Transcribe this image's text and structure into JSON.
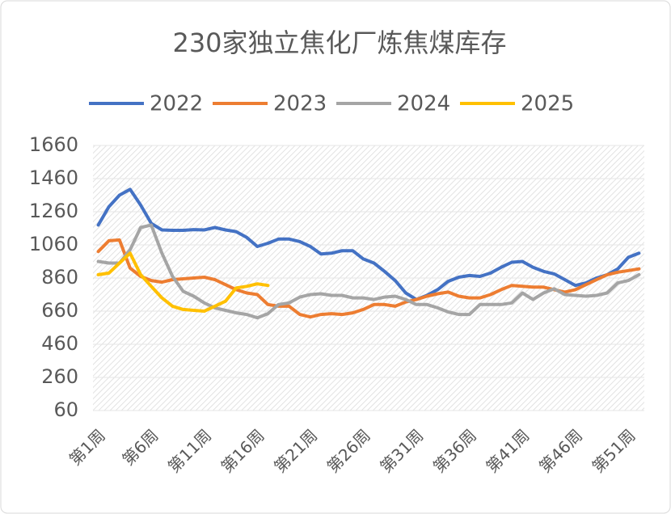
{
  "chart_data": {
    "type": "line",
    "title": "230家独立焦化厂炼焦煤库存",
    "categories": [
      "第1周",
      null,
      null,
      null,
      null,
      "第6周",
      null,
      null,
      null,
      null,
      "第11周",
      null,
      null,
      null,
      null,
      "第16周",
      null,
      null,
      null,
      null,
      "第21周",
      null,
      null,
      null,
      null,
      "第26周",
      null,
      null,
      null,
      null,
      "第31周",
      null,
      null,
      null,
      null,
      "第36周",
      null,
      null,
      null,
      null,
      "第41周",
      null,
      null,
      null,
      null,
      "第46周",
      null,
      null,
      null,
      null,
      "第51周",
      null
    ],
    "series": [
      {
        "name": "2022",
        "color": "#4472c4",
        "values": [
          1180,
          1290,
          1360,
          1395,
          1300,
          1190,
          1150,
          1148,
          1148,
          1152,
          1150,
          1165,
          1150,
          1140,
          1105,
          1050,
          1070,
          1095,
          1095,
          1080,
          1050,
          1005,
          1010,
          1025,
          1025,
          975,
          950,
          900,
          845,
          770,
          730,
          755,
          790,
          840,
          865,
          875,
          870,
          890,
          925,
          955,
          960,
          925,
          900,
          885,
          850,
          815,
          830,
          860,
          880,
          915,
          985,
          1010
        ]
      },
      {
        "name": "2023",
        "color": "#ed7d31",
        "values": [
          1020,
          1085,
          1090,
          920,
          870,
          845,
          835,
          850,
          855,
          860,
          865,
          850,
          820,
          790,
          770,
          760,
          700,
          690,
          690,
          640,
          625,
          640,
          645,
          640,
          650,
          670,
          700,
          700,
          690,
          715,
          730,
          750,
          765,
          775,
          750,
          740,
          740,
          760,
          790,
          815,
          810,
          805,
          805,
          790,
          775,
          790,
          820,
          850,
          880,
          895,
          905,
          915
        ]
      },
      {
        "name": "2024",
        "color": "#a5a5a5",
        "values": [
          960,
          950,
          950,
          1030,
          1165,
          1180,
          1010,
          870,
          780,
          750,
          710,
          680,
          665,
          650,
          640,
          620,
          645,
          700,
          710,
          745,
          760,
          765,
          755,
          755,
          740,
          740,
          730,
          745,
          750,
          730,
          700,
          700,
          680,
          655,
          640,
          640,
          700,
          700,
          700,
          710,
          770,
          730,
          770,
          795,
          760,
          755,
          750,
          755,
          770,
          830,
          845,
          880
        ]
      },
      {
        "name": "2025",
        "color": "#ffc000",
        "values": [
          880,
          890,
          950,
          1010,
          880,
          810,
          740,
          690,
          670,
          665,
          660,
          690,
          720,
          800,
          810,
          825,
          815,
          null,
          null,
          null,
          null,
          null,
          null,
          null,
          null,
          null,
          null,
          null,
          null,
          null,
          null,
          null,
          null,
          null,
          null,
          null,
          null,
          null,
          null,
          null,
          null,
          null,
          null,
          null,
          null,
          null,
          null,
          null,
          null,
          null,
          null,
          null
        ]
      }
    ],
    "ylim": [
      60,
      1660
    ],
    "yticks": [
      60,
      260,
      460,
      660,
      860,
      1060,
      1260,
      1460,
      1660
    ],
    "grid": true,
    "legend": "top"
  }
}
